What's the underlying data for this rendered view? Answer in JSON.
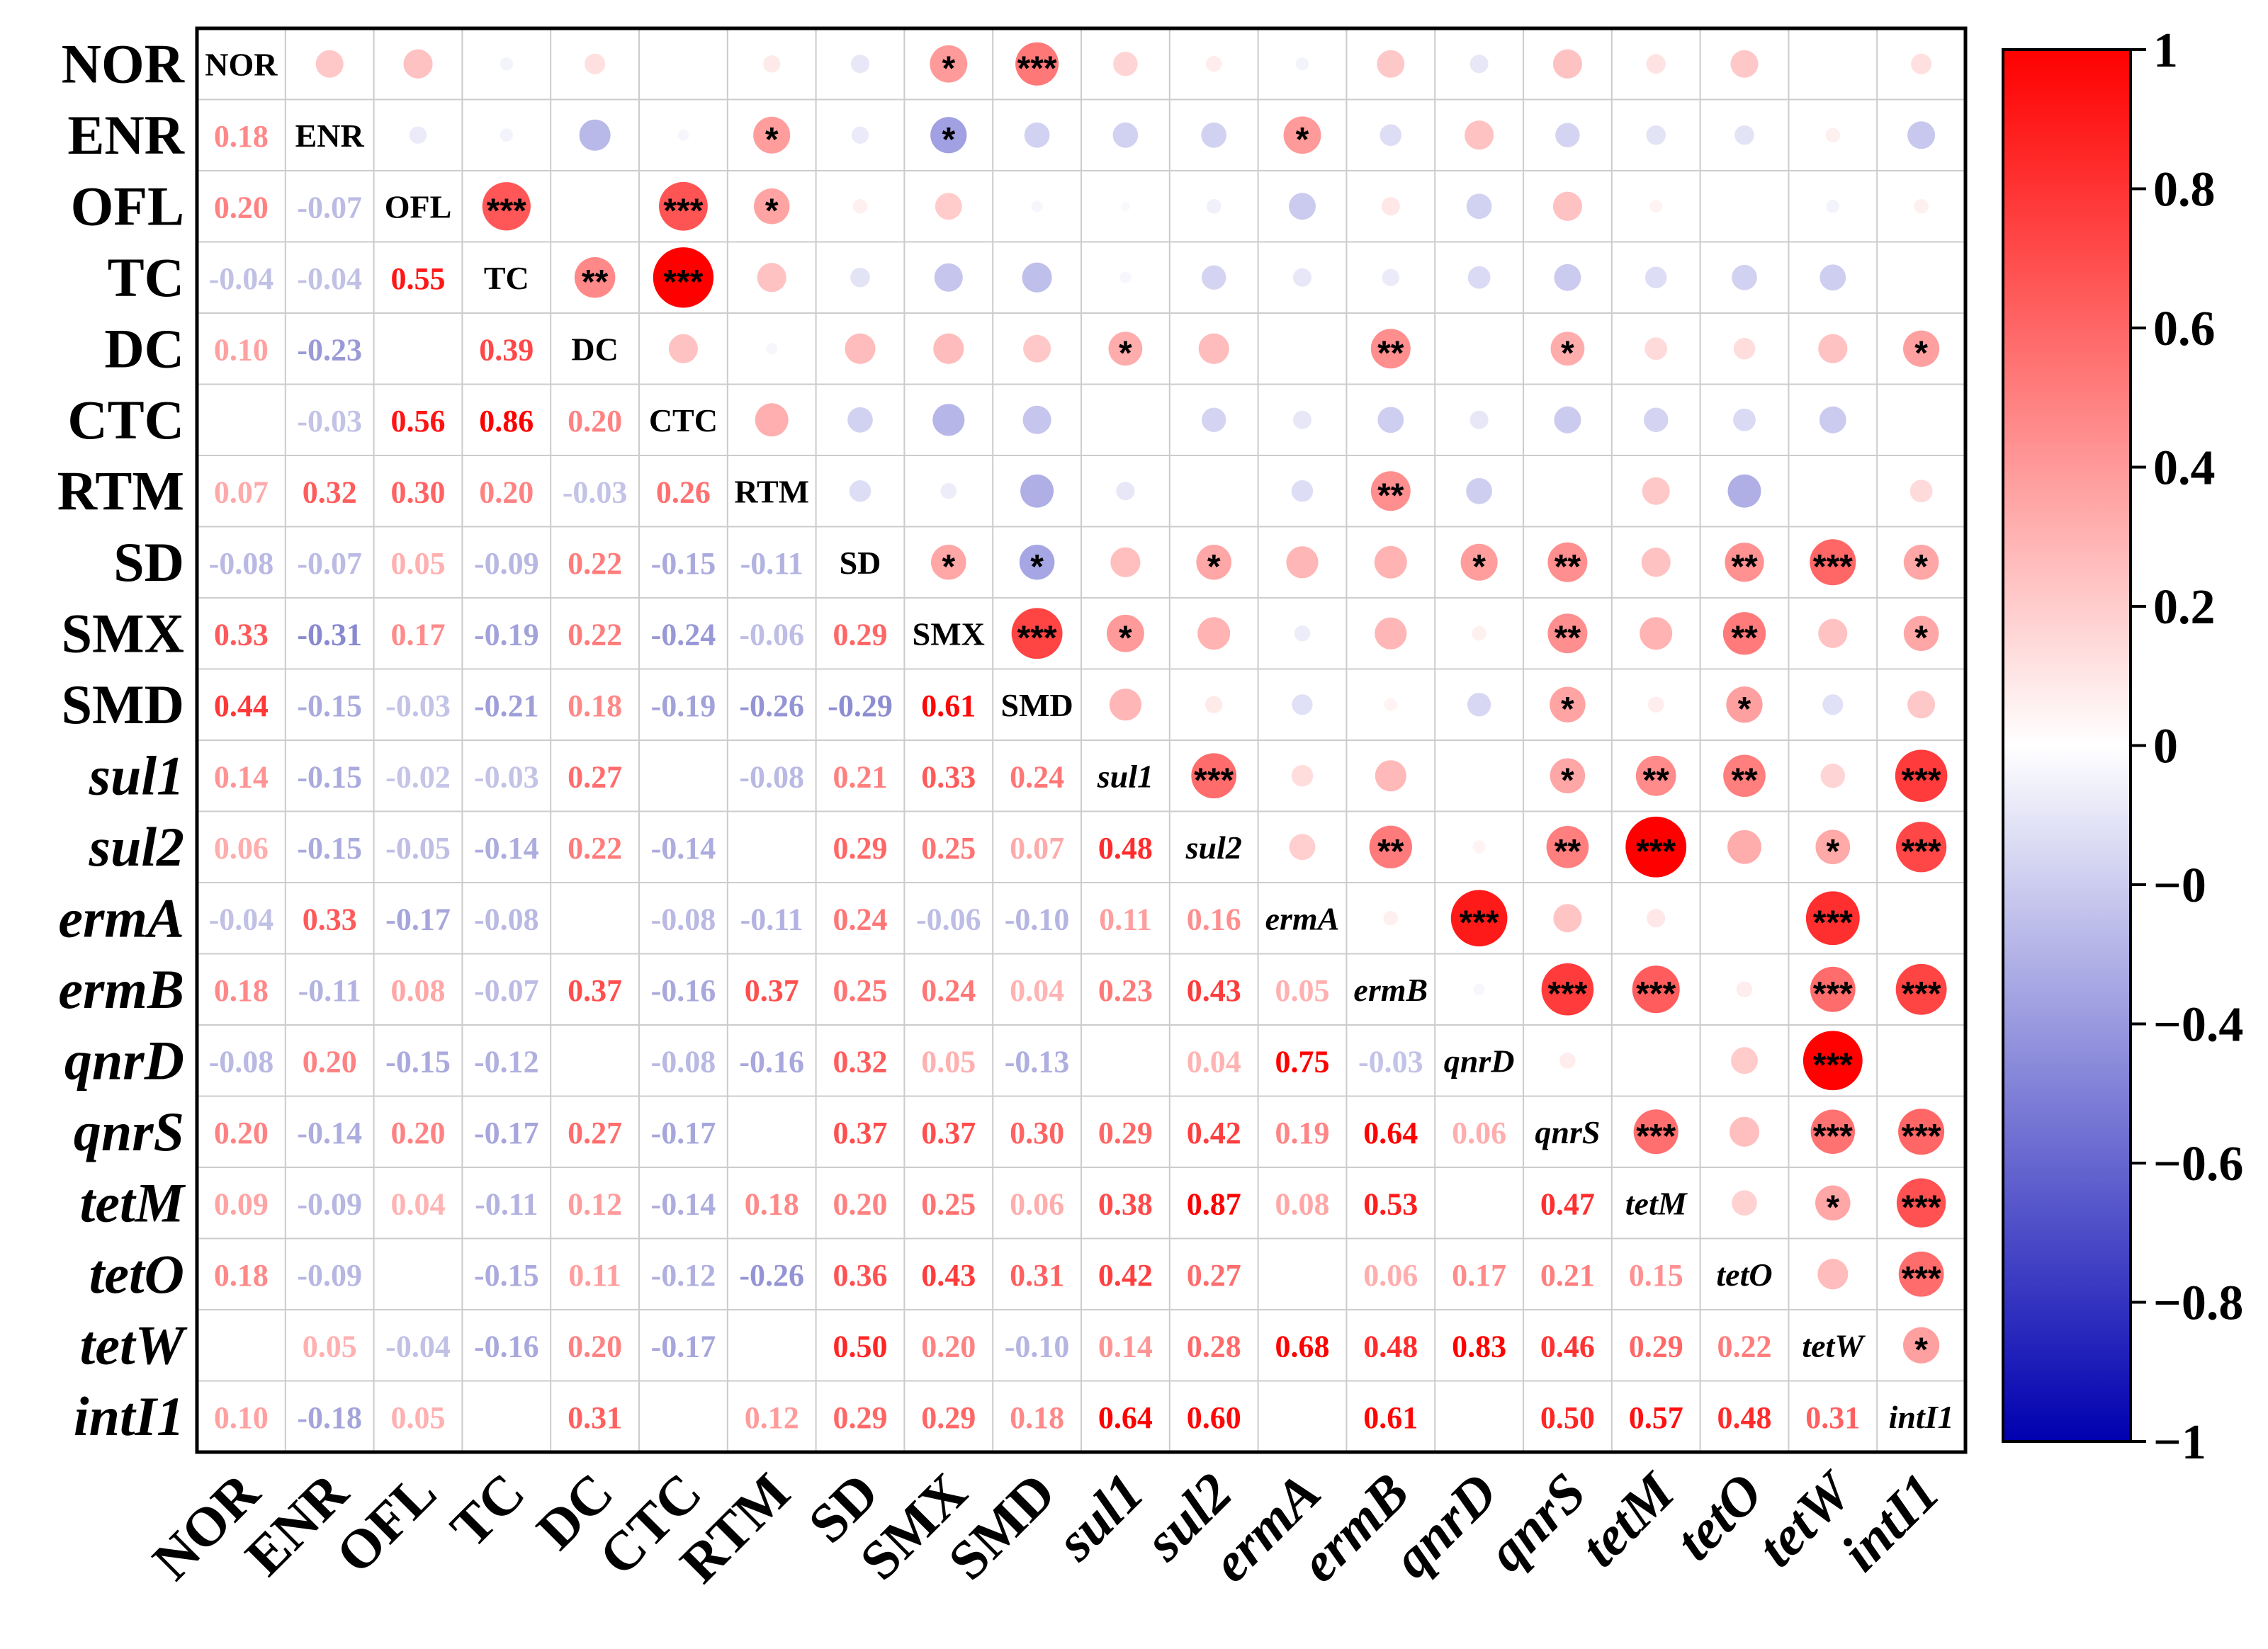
{
  "chart_data": {
    "type": "heatmap",
    "title": "",
    "variables": [
      {
        "name": "NOR",
        "italic": false
      },
      {
        "name": "ENR",
        "italic": false
      },
      {
        "name": "OFL",
        "italic": false
      },
      {
        "name": "TC",
        "italic": false
      },
      {
        "name": "DC",
        "italic": false
      },
      {
        "name": "CTC",
        "italic": false
      },
      {
        "name": "RTM",
        "italic": false
      },
      {
        "name": "SD",
        "italic": false
      },
      {
        "name": "SMX",
        "italic": false
      },
      {
        "name": "SMD",
        "italic": false
      },
      {
        "name": "sul1",
        "italic": true
      },
      {
        "name": "sul2",
        "italic": true
      },
      {
        "name": "ermA",
        "italic": true
      },
      {
        "name": "ermB",
        "italic": true
      },
      {
        "name": "qnrD",
        "italic": true
      },
      {
        "name": "qnrS",
        "italic": true
      },
      {
        "name": "tetM",
        "italic": true
      },
      {
        "name": "tetO",
        "italic": true
      },
      {
        "name": "tetW",
        "italic": true
      },
      {
        "name": "intI1",
        "italic": true
      }
    ],
    "lower_triangle_labels": [
      [],
      [
        "0.18"
      ],
      [
        "0.20",
        "-0.07"
      ],
      [
        "-0.04",
        "-0.04",
        "0.55"
      ],
      [
        "0.10",
        "-0.23",
        "",
        "0.39"
      ],
      [
        "",
        "-0.03",
        "0.56",
        "0.86",
        "0.20"
      ],
      [
        "0.07",
        "0.32",
        "0.30",
        "0.20",
        "-0.03",
        "0.26"
      ],
      [
        "-0.08",
        "-0.07",
        "0.05",
        "-0.09",
        "0.22",
        "-0.15",
        "-0.11"
      ],
      [
        "0.33",
        "-0.31",
        "0.17",
        "-0.19",
        "0.22",
        "-0.24",
        "-0.06",
        "0.29"
      ],
      [
        "0.44",
        "-0.15",
        "-0.03",
        "-0.21",
        "0.18",
        "-0.19",
        "-0.26",
        "-0.29",
        "0.61"
      ],
      [
        "0.14",
        "-0.15",
        "-0.02",
        "-0.03",
        "0.27",
        "",
        "-0.08",
        "0.21",
        "0.33",
        "0.24"
      ],
      [
        "0.06",
        "-0.15",
        "-0.05",
        "-0.14",
        "0.22",
        "-0.14",
        "",
        "0.29",
        "0.25",
        "0.07",
        "0.48"
      ],
      [
        "-0.04",
        "0.33",
        "-0.17",
        "-0.08",
        "",
        "-0.08",
        "-0.11",
        "0.24",
        "-0.06",
        "-0.10",
        "0.11",
        "0.16"
      ],
      [
        "0.18",
        "-0.11",
        "0.08",
        "-0.07",
        "0.37",
        "-0.16",
        "0.37",
        "0.25",
        "0.24",
        "0.04",
        "0.23",
        "0.43",
        "0.05"
      ],
      [
        "-0.08",
        "0.20",
        "-0.15",
        "-0.12",
        "",
        "-0.08",
        "-0.16",
        "0.32",
        "0.05",
        "-0.13",
        "",
        "0.04",
        "0.75",
        "-0.03"
      ],
      [
        "0.20",
        "-0.14",
        "0.20",
        "-0.17",
        "0.27",
        "-0.17",
        "",
        "0.37",
        "0.37",
        "0.30",
        "0.29",
        "0.42",
        "0.19",
        "0.64",
        "0.06"
      ],
      [
        "0.09",
        "-0.09",
        "0.04",
        "-0.11",
        "0.12",
        "-0.14",
        "0.18",
        "0.20",
        "0.25",
        "0.06",
        "0.38",
        "0.87",
        "0.08",
        "0.53",
        "",
        "0.47"
      ],
      [
        "0.18",
        "-0.09",
        "",
        "-0.15",
        "0.11",
        "-0.12",
        "-0.26",
        "0.36",
        "0.43",
        "0.31",
        "0.42",
        "0.27",
        "",
        "0.06",
        "0.17",
        "0.21",
        "0.15"
      ],
      [
        "",
        "0.05",
        "-0.04",
        "-0.16",
        "0.20",
        "-0.17",
        "",
        "0.50",
        "0.20",
        "-0.10",
        "0.14",
        "0.28",
        "0.68",
        "0.48",
        "0.83",
        "0.46",
        "0.29",
        "0.22"
      ],
      [
        "0.10",
        "-0.18",
        "0.05",
        "",
        "0.31",
        "",
        "0.12",
        "0.29",
        "0.29",
        "0.18",
        "0.64",
        "0.60",
        "",
        "0.61",
        "",
        "0.50",
        "0.57",
        "0.48",
        "0.31"
      ]
    ],
    "upper_triangle_significance": [
      {
        "row": "NOR",
        "col": "SMX",
        "stars": "*"
      },
      {
        "row": "NOR",
        "col": "SMD",
        "stars": "***"
      },
      {
        "row": "ENR",
        "col": "RTM",
        "stars": "*"
      },
      {
        "row": "ENR",
        "col": "SMX",
        "stars": "*"
      },
      {
        "row": "ENR",
        "col": "ermA",
        "stars": "*"
      },
      {
        "row": "OFL",
        "col": "TC",
        "stars": "***"
      },
      {
        "row": "OFL",
        "col": "CTC",
        "stars": "***"
      },
      {
        "row": "OFL",
        "col": "RTM",
        "stars": "*"
      },
      {
        "row": "TC",
        "col": "DC",
        "stars": "**"
      },
      {
        "row": "TC",
        "col": "CTC",
        "stars": "***"
      },
      {
        "row": "DC",
        "col": "sul1",
        "stars": "*"
      },
      {
        "row": "DC",
        "col": "ermB",
        "stars": "**"
      },
      {
        "row": "DC",
        "col": "qnrS",
        "stars": "*"
      },
      {
        "row": "DC",
        "col": "intI1",
        "stars": "*"
      },
      {
        "row": "RTM",
        "col": "ermB",
        "stars": "**"
      },
      {
        "row": "SD",
        "col": "SMX",
        "stars": "*"
      },
      {
        "row": "SD",
        "col": "SMD",
        "stars": "*"
      },
      {
        "row": "SD",
        "col": "sul2",
        "stars": "*"
      },
      {
        "row": "SD",
        "col": "qnrD",
        "stars": "*"
      },
      {
        "row": "SD",
        "col": "qnrS",
        "stars": "**"
      },
      {
        "row": "SD",
        "col": "tetO",
        "stars": "**"
      },
      {
        "row": "SD",
        "col": "tetW",
        "stars": "***"
      },
      {
        "row": "SD",
        "col": "intI1",
        "stars": "*"
      },
      {
        "row": "SMX",
        "col": "SMD",
        "stars": "***"
      },
      {
        "row": "SMX",
        "col": "sul1",
        "stars": "*"
      },
      {
        "row": "SMX",
        "col": "qnrS",
        "stars": "**"
      },
      {
        "row": "SMX",
        "col": "tetO",
        "stars": "**"
      },
      {
        "row": "SMX",
        "col": "intI1",
        "stars": "*"
      },
      {
        "row": "SMD",
        "col": "qnrS",
        "stars": "*"
      },
      {
        "row": "SMD",
        "col": "tetO",
        "stars": "*"
      },
      {
        "row": "sul1",
        "col": "sul2",
        "stars": "***"
      },
      {
        "row": "sul1",
        "col": "qnrS",
        "stars": "*"
      },
      {
        "row": "sul1",
        "col": "tetM",
        "stars": "**"
      },
      {
        "row": "sul1",
        "col": "tetO",
        "stars": "**"
      },
      {
        "row": "sul1",
        "col": "intI1",
        "stars": "***"
      },
      {
        "row": "sul2",
        "col": "ermB",
        "stars": "**"
      },
      {
        "row": "sul2",
        "col": "qnrS",
        "stars": "**"
      },
      {
        "row": "sul2",
        "col": "tetM",
        "stars": "***"
      },
      {
        "row": "sul2",
        "col": "tetW",
        "stars": "*"
      },
      {
        "row": "sul2",
        "col": "intI1",
        "stars": "***"
      },
      {
        "row": "ermA",
        "col": "qnrD",
        "stars": "***"
      },
      {
        "row": "ermA",
        "col": "tetW",
        "stars": "***"
      },
      {
        "row": "ermB",
        "col": "qnrS",
        "stars": "***"
      },
      {
        "row": "ermB",
        "col": "tetM",
        "stars": "***"
      },
      {
        "row": "ermB",
        "col": "tetW",
        "stars": "***"
      },
      {
        "row": "ermB",
        "col": "intI1",
        "stars": "***"
      },
      {
        "row": "qnrD",
        "col": "tetW",
        "stars": "***"
      },
      {
        "row": "qnrS",
        "col": "tetM",
        "stars": "***"
      },
      {
        "row": "qnrS",
        "col": "tetW",
        "stars": "***"
      },
      {
        "row": "qnrS",
        "col": "intI1",
        "stars": "***"
      },
      {
        "row": "tetM",
        "col": "tetW",
        "stars": "*"
      },
      {
        "row": "tetM",
        "col": "intI1",
        "stars": "***"
      },
      {
        "row": "tetO",
        "col": "intI1",
        "stars": "***"
      },
      {
        "row": "tetW",
        "col": "intI1",
        "stars": "*"
      }
    ],
    "upper_triangle_extra_values": [
      {
        "row": "NOR",
        "col": "ENR",
        "value": 0.18
      },
      {
        "row": "ENR",
        "col": "DC",
        "value": -0.23
      },
      {
        "row": "CTC",
        "col": "DC",
        "value": 0.2
      },
      {
        "row": "ENR",
        "col": "SMD",
        "value": -0.15
      },
      {
        "row": "ENR",
        "col": "sul1",
        "value": -0.15
      },
      {
        "row": "ENR",
        "col": "sul2",
        "value": -0.15
      },
      {
        "row": "ENR",
        "col": "qnrS",
        "value": -0.14
      },
      {
        "row": "ENR",
        "col": "tetM",
        "value": -0.09
      },
      {
        "row": "ENR",
        "col": "tetO",
        "value": -0.09
      },
      {
        "row": "ENR",
        "col": "intI1",
        "value": -0.18
      },
      {
        "row": "OFL",
        "col": "ermA",
        "value": -0.17
      },
      {
        "row": "OFL",
        "col": "qnrD",
        "value": -0.15
      },
      {
        "row": "OFL",
        "col": "qnrS",
        "value": 0.2
      },
      {
        "row": "TC",
        "col": "RTM",
        "value": 0.2
      },
      {
        "row": "TC",
        "col": "SD",
        "value": -0.09
      },
      {
        "row": "TC",
        "col": "SMX",
        "value": -0.19
      },
      {
        "row": "TC",
        "col": "SMD",
        "value": -0.21
      },
      {
        "row": "TC",
        "col": "sul2",
        "value": -0.14
      },
      {
        "row": "TC",
        "col": "ermA",
        "value": -0.08
      },
      {
        "row": "TC",
        "col": "ermB",
        "value": -0.07
      },
      {
        "row": "TC",
        "col": "qnrD",
        "value": -0.12
      },
      {
        "row": "TC",
        "col": "qnrS",
        "value": -0.17
      },
      {
        "row": "TC",
        "col": "tetM",
        "value": -0.11
      },
      {
        "row": "TC",
        "col": "tetO",
        "value": -0.15
      },
      {
        "row": "TC",
        "col": "tetW",
        "value": -0.16
      },
      {
        "row": "DC",
        "col": "SD",
        "value": 0.22
      },
      {
        "row": "DC",
        "col": "SMX",
        "value": 0.22
      },
      {
        "row": "DC",
        "col": "SMD",
        "value": 0.18
      },
      {
        "row": "DC",
        "col": "sul2",
        "value": 0.22
      },
      {
        "row": "DC",
        "col": "tetM",
        "value": 0.12
      },
      {
        "row": "DC",
        "col": "tetO",
        "value": 0.11
      },
      {
        "row": "DC",
        "col": "tetW",
        "value": 0.2
      },
      {
        "row": "CTC",
        "col": "RTM",
        "value": 0.26
      },
      {
        "row": "CTC",
        "col": "SD",
        "value": -0.15
      },
      {
        "row": "CTC",
        "col": "SMX",
        "value": -0.24
      },
      {
        "row": "CTC",
        "col": "SMD",
        "value": -0.19
      },
      {
        "row": "CTC",
        "col": "sul2",
        "value": -0.14
      },
      {
        "row": "CTC",
        "col": "ermA",
        "value": -0.08
      },
      {
        "row": "CTC",
        "col": "ermB",
        "value": -0.16
      },
      {
        "row": "CTC",
        "col": "qnrD",
        "value": -0.08
      },
      {
        "row": "CTC",
        "col": "qnrS",
        "value": -0.17
      },
      {
        "row": "CTC",
        "col": "tetM",
        "value": -0.14
      },
      {
        "row": "CTC",
        "col": "tetO",
        "value": -0.12
      },
      {
        "row": "CTC",
        "col": "tetW",
        "value": -0.17
      },
      {
        "row": "RTM",
        "col": "SD",
        "value": -0.11
      },
      {
        "row": "RTM",
        "col": "SMD",
        "value": -0.26
      },
      {
        "row": "RTM",
        "col": "sul1",
        "value": -0.08
      },
      {
        "row": "RTM",
        "col": "ermA",
        "value": -0.11
      },
      {
        "row": "RTM",
        "col": "qnrD",
        "value": -0.16
      },
      {
        "row": "RTM",
        "col": "tetM",
        "value": 0.18
      },
      {
        "row": "RTM",
        "col": "tetO",
        "value": -0.26
      },
      {
        "row": "RTM",
        "col": "intI1",
        "value": 0.12
      },
      {
        "row": "SD",
        "col": "SMD",
        "value": -0.29
      },
      {
        "row": "SD",
        "col": "sul1",
        "value": 0.21
      },
      {
        "row": "SD",
        "col": "ermA",
        "value": 0.24
      },
      {
        "row": "SMX",
        "col": "ermA",
        "value": -0.06
      },
      {
        "row": "SMX",
        "col": "qnrD",
        "value": 0.05
      },
      {
        "row": "SMD",
        "col": "ermA",
        "value": -0.1
      },
      {
        "row": "SMD",
        "col": "qnrD",
        "value": -0.13
      },
      {
        "row": "SMD",
        "col": "tetW",
        "value": -0.1
      },
      {
        "row": "sul1",
        "col": "ermA",
        "value": 0.11
      },
      {
        "row": "sul1",
        "col": "tetW",
        "value": 0.14
      },
      {
        "row": "sul2",
        "col": "ermA",
        "value": 0.16
      },
      {
        "row": "sul2",
        "col": "qnrD",
        "value": 0.04
      },
      {
        "row": "sul2",
        "col": "tetO",
        "value": 0.27
      },
      {
        "row": "ermA",
        "col": "ermB",
        "value": 0.05
      },
      {
        "row": "ermA",
        "col": "qnrS",
        "value": 0.19
      },
      {
        "row": "ermA",
        "col": "tetM",
        "value": 0.08
      },
      {
        "row": "ermB",
        "col": "qnrD",
        "value": -0.03
      },
      {
        "row": "ermB",
        "col": "tetO",
        "value": 0.06
      },
      {
        "row": "qnrD",
        "col": "qnrS",
        "value": 0.06
      },
      {
        "row": "qnrD",
        "col": "tetO",
        "value": 0.17
      },
      {
        "row": "qnrD",
        "col": "intI1",
        "value": 0.0
      },
      {
        "row": "qnrS",
        "col": "tetO",
        "value": 0.21
      },
      {
        "row": "tetM",
        "col": "tetO",
        "value": 0.15
      },
      {
        "row": "tetO",
        "col": "tetW",
        "value": 0.22
      }
    ],
    "colorbar": {
      "range": [
        -1,
        1
      ],
      "tick_labels": [
        "1",
        "0.8",
        "0.6",
        "0.4",
        "0.2",
        "0",
        "−0",
        "−0.4",
        "−0.6",
        "−0.8",
        "−1"
      ],
      "colors": {
        "neg": "#0000b0",
        "zero": "#ffffff",
        "pos": "#ff0000"
      }
    },
    "colors": {
      "positive": "#ff0000",
      "negative": "#1a1aa8",
      "grid": "#cccccc",
      "frame": "#000000"
    }
  }
}
